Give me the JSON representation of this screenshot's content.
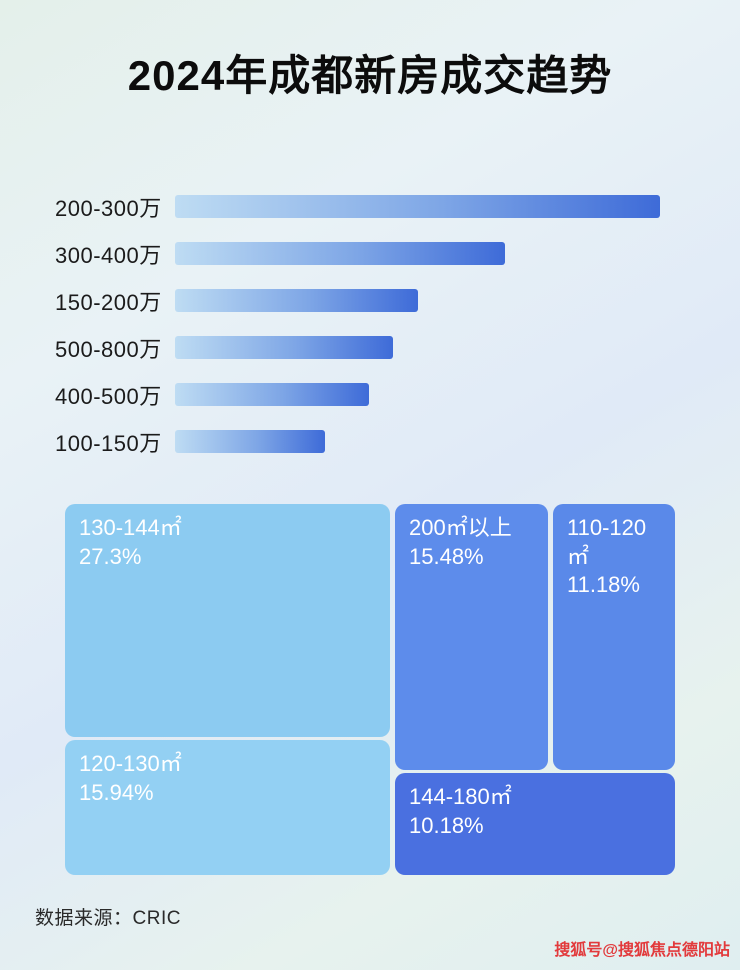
{
  "page": {
    "title": "2024年成都新房成交趋势",
    "footer": "数据来源：CRIC",
    "watermark": "搜狐号@搜狐焦点德阳站"
  },
  "chart_data": [
    {
      "type": "bar",
      "orientation": "horizontal",
      "title": "2024年成都新房成交趋势",
      "categories": [
        "200-300万",
        "300-400万",
        "150-200万",
        "500-800万",
        "400-500万",
        "100-150万"
      ],
      "values": [
        100,
        68,
        50,
        45,
        40,
        31
      ],
      "value_note": "relative bar lengths, no numeric axis shown in image",
      "xlabel": "",
      "ylabel": "",
      "grid": false,
      "legend": false,
      "bar_gradient": [
        "#bedcf3",
        "#3e6bd8"
      ]
    },
    {
      "type": "treemap",
      "items": [
        {
          "label": "130-144㎡",
          "value": 27.3,
          "value_text": "27.3%",
          "color": "#8ccbf1"
        },
        {
          "label": "200㎡以上",
          "value": 15.48,
          "value_text": "15.48%",
          "color": "#5d8ceb"
        },
        {
          "label": "110-120㎡",
          "value": 11.18,
          "value_text": "11.18%",
          "color": "#5a89e9"
        },
        {
          "label": "120-130㎡",
          "value": 15.94,
          "value_text": "15.94%",
          "color": "#93d0f3"
        },
        {
          "label": "144-180㎡",
          "value": 10.18,
          "value_text": "10.18%",
          "color": "#4a70e0"
        }
      ]
    }
  ],
  "colors": {
    "title_text": "#0c0c0c",
    "bar_label_text": "#1b1b1b",
    "block_text": "#ffffff",
    "watermark_red": "#e23a3c"
  }
}
